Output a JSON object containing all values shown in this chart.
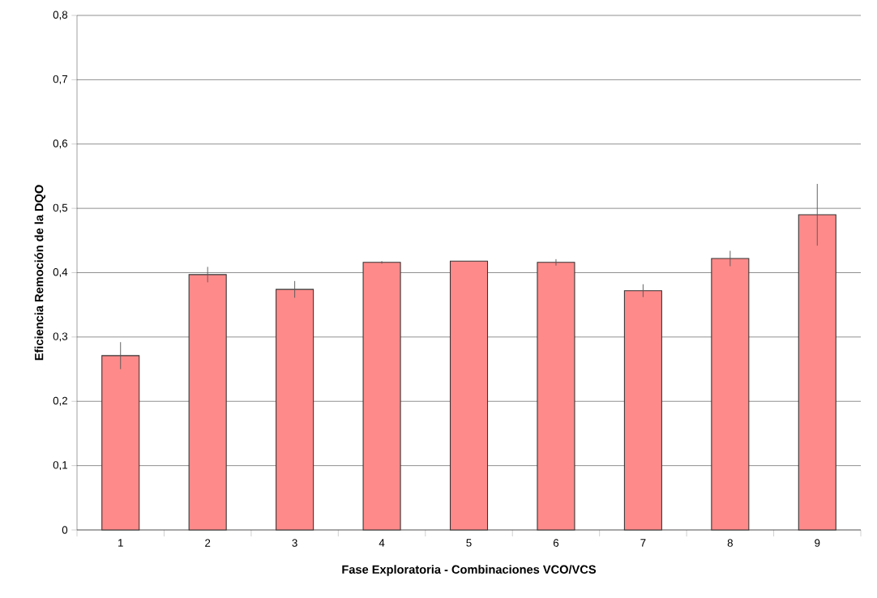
{
  "chart_data": {
    "type": "bar",
    "xlabel": "Fase Exploratoria - Combinaciones VCO/VCS",
    "ylabel": "Eficiencia Remoción de la DQO",
    "categories": [
      "1",
      "2",
      "3",
      "4",
      "5",
      "6",
      "7",
      "8",
      "9"
    ],
    "values": [
      0.271,
      0.397,
      0.374,
      0.416,
      0.418,
      0.416,
      0.372,
      0.422,
      0.49
    ],
    "errors": [
      0.021,
      0.012,
      0.013,
      0.002,
      null,
      0.005,
      0.01,
      0.012,
      0.048
    ],
    "color": "#ff8a8a",
    "ylim": [
      0,
      0.8
    ],
    "yticks": [
      {
        "value": 0,
        "label": "0"
      },
      {
        "value": 0.1,
        "label": "0,1"
      },
      {
        "value": 0.2,
        "label": "0,2"
      },
      {
        "value": 0.3,
        "label": "0,3"
      },
      {
        "value": 0.4,
        "label": "0,4"
      },
      {
        "value": 0.5,
        "label": "0,5"
      },
      {
        "value": 0.6,
        "label": "0,6"
      },
      {
        "value": 0.7,
        "label": "0,7"
      },
      {
        "value": 0.8,
        "label": "0,8"
      }
    ],
    "grid": "y"
  }
}
